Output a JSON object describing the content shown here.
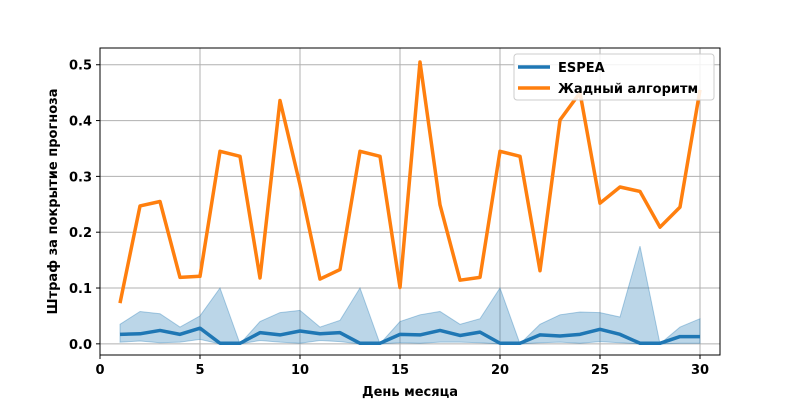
{
  "chart_data": {
    "type": "line",
    "xlabel": "День месяца",
    "ylabel": "Штраф за покрытие прогноза",
    "xlim": [
      0,
      31
    ],
    "ylim": [
      -0.02,
      0.53
    ],
    "xticks": [
      0,
      5,
      10,
      15,
      20,
      25,
      30
    ],
    "yticks": [
      0.0,
      0.1,
      0.2,
      0.3,
      0.4,
      0.5
    ],
    "grid": true,
    "legend_position": "top-right",
    "x": [
      1,
      2,
      3,
      4,
      5,
      6,
      7,
      8,
      9,
      10,
      11,
      12,
      13,
      14,
      15,
      16,
      17,
      18,
      19,
      20,
      21,
      22,
      23,
      24,
      25,
      26,
      27,
      28,
      29,
      30
    ],
    "series": [
      {
        "name": "ESPEA",
        "color": "#1f77b4",
        "values": [
          0.017,
          0.018,
          0.024,
          0.017,
          0.028,
          0.001,
          0.001,
          0.02,
          0.016,
          0.023,
          0.018,
          0.02,
          0.001,
          0.001,
          0.017,
          0.016,
          0.024,
          0.015,
          0.021,
          0.001,
          0.001,
          0.016,
          0.014,
          0.017,
          0.026,
          0.017,
          0.001,
          0.001,
          0.013,
          0.013
        ],
        "band_lower": [
          0.003,
          0.005,
          0.002,
          0.003,
          0.008,
          0.0,
          0.0,
          0.006,
          0.003,
          0.001,
          0.006,
          0.004,
          0.0,
          0.0,
          0.002,
          0.001,
          0.003,
          0.003,
          0.002,
          0.0,
          0.0,
          0.002,
          0.003,
          0.001,
          0.004,
          0.002,
          0.0,
          0.0,
          0.001,
          0.001
        ],
        "band_upper": [
          0.035,
          0.058,
          0.054,
          0.03,
          0.05,
          0.1,
          0.0,
          0.04,
          0.056,
          0.06,
          0.03,
          0.042,
          0.1,
          0.0,
          0.04,
          0.052,
          0.058,
          0.035,
          0.045,
          0.1,
          0.0,
          0.035,
          0.052,
          0.057,
          0.056,
          0.048,
          0.175,
          0.0,
          0.03,
          0.045
        ]
      },
      {
        "name": "Жадный алгоритм",
        "color": "#ff7f0e",
        "values": [
          0.073,
          0.247,
          0.255,
          0.119,
          0.121,
          0.345,
          0.336,
          0.118,
          0.436,
          0.285,
          0.116,
          0.133,
          0.345,
          0.336,
          0.101,
          0.505,
          0.249,
          0.114,
          0.119,
          0.345,
          0.336,
          0.131,
          0.401,
          0.45,
          0.252,
          0.281,
          0.273,
          0.209,
          0.245,
          0.455
        ]
      }
    ]
  }
}
